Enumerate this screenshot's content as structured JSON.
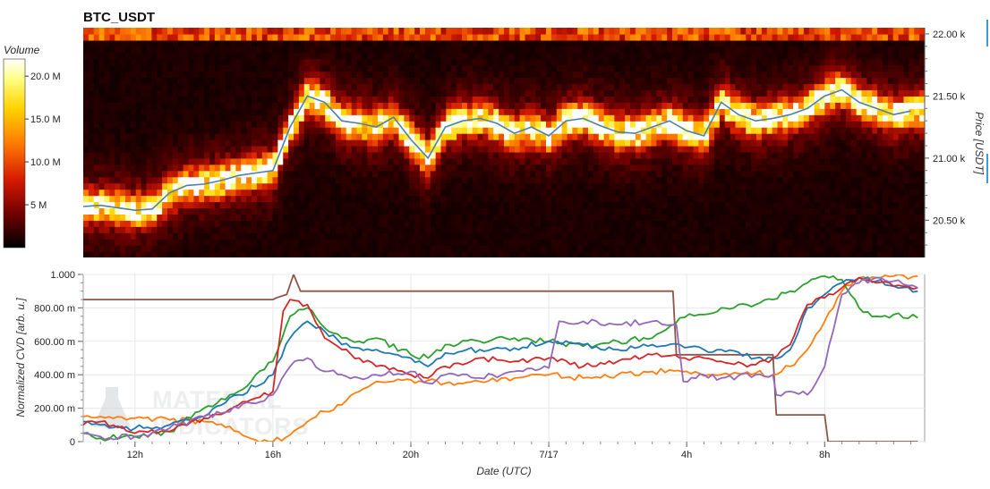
{
  "top_chart": {
    "title": "BTC_USDT",
    "colorbar": {
      "title": "Volume",
      "range": [
        0,
        22000000
      ],
      "ticks": [
        {
          "value": 5000000,
          "label": "5 M"
        },
        {
          "value": 10000000,
          "label": "10.0 M"
        },
        {
          "value": 15000000,
          "label": "15.0 M"
        },
        {
          "value": 20000000,
          "label": "20.0 M"
        }
      ],
      "colors": [
        "#000000",
        "#6b0000",
        "#d41a00",
        "#ff7a00",
        "#ffd400",
        "#ffff8a",
        "#ffffff"
      ]
    },
    "yaxis": {
      "label": "Price [USDT]",
      "range": [
        20200,
        22050
      ],
      "ticks": [
        {
          "value": 20500,
          "label": "20.50 k"
        },
        {
          "value": 21000,
          "label": "21.00 k"
        },
        {
          "value": 21500,
          "label": "21.50 k"
        },
        {
          "value": 22000,
          "label": "22.00 k"
        }
      ]
    },
    "price_line_color": "#4a7fb0"
  },
  "chart_data": [
    {
      "type": "heatmap",
      "x_hours": [
        10.5,
        11,
        11.5,
        12,
        12.5,
        13,
        13.5,
        14,
        14.5,
        15,
        15.5,
        16,
        16.5,
        17,
        17.5,
        18,
        18.5,
        19,
        19.5,
        20,
        20.5,
        21,
        21.5,
        22,
        22.5,
        23,
        23.5,
        24,
        24.5,
        25,
        25.5,
        26,
        26.5,
        27,
        27.5,
        28,
        28.5,
        29,
        29.5,
        30,
        30.5,
        31,
        31.5,
        32,
        32.5,
        33,
        33.5,
        34,
        34.5
      ],
      "price": [
        20610,
        20620,
        20600,
        20580,
        20590,
        20720,
        20780,
        20790,
        20820,
        20860,
        20880,
        20900,
        21250,
        21500,
        21450,
        21300,
        21280,
        21250,
        21330,
        21150,
        21000,
        21250,
        21300,
        21320,
        21280,
        21200,
        21250,
        21180,
        21300,
        21320,
        21260,
        21210,
        21200,
        21250,
        21300,
        21220,
        21180,
        21450,
        21350,
        21300,
        21320,
        21350,
        21400,
        21500,
        21550,
        21450,
        21400,
        21350,
        21380
      ],
      "price_unit": "USDT",
      "value_unit": "Volume"
    },
    {
      "type": "line",
      "xlabel": "Date (UTC)",
      "ylabel": "Normalized CVD [arb. u.]",
      "xlim": [
        10.5,
        34.9
      ],
      "ylim": [
        0,
        1
      ],
      "x_ticks": [
        {
          "value": 12,
          "label": "12h"
        },
        {
          "value": 16,
          "label": "16h"
        },
        {
          "value": 20,
          "label": "20h"
        },
        {
          "value": 24,
          "label": "7/17"
        },
        {
          "value": 28,
          "label": "4h"
        },
        {
          "value": 32,
          "label": "8h"
        }
      ],
      "y_ticks": [
        {
          "value": 0,
          "label": "0"
        },
        {
          "value": 0.2,
          "label": "200.00 m"
        },
        {
          "value": 0.4,
          "label": "400.00 m"
        },
        {
          "value": 0.6,
          "label": "600.00 m"
        },
        {
          "value": 0.8,
          "label": "800.00 m"
        },
        {
          "value": 1.0,
          "label": "1.000"
        }
      ],
      "series": [
        {
          "color": "#8c564b",
          "x": [
            10.5,
            16.0,
            16.1,
            16.4,
            16.6,
            16.8,
            17.0,
            27.6,
            27.7,
            30.5,
            30.6,
            32.0,
            32.1,
            34.7
          ],
          "values": [
            0.85,
            0.85,
            0.86,
            0.88,
            1.0,
            0.9,
            0.9,
            0.9,
            0.52,
            0.52,
            0.16,
            0.16,
            0.0,
            0.0
          ]
        },
        {
          "color": "#ff7f0e",
          "x": [
            10.5,
            11,
            12,
            13,
            14,
            15,
            15.5,
            16,
            16.5,
            17,
            17.5,
            18,
            18.5,
            19,
            20,
            21,
            22,
            23,
            24,
            25,
            26,
            27,
            28,
            29,
            30,
            30.5,
            31,
            31.5,
            32,
            32.5,
            33,
            34,
            34.7
          ],
          "values": [
            0.15,
            0.15,
            0.14,
            0.13,
            0.12,
            0.06,
            0.01,
            0.0,
            0.04,
            0.12,
            0.18,
            0.22,
            0.3,
            0.36,
            0.37,
            0.35,
            0.36,
            0.38,
            0.4,
            0.38,
            0.4,
            0.42,
            0.42,
            0.4,
            0.41,
            0.4,
            0.45,
            0.55,
            0.72,
            0.9,
            0.98,
            0.99,
            0.99
          ]
        },
        {
          "color": "#2ca02c",
          "x": [
            10.5,
            11,
            12,
            13,
            14,
            15,
            16,
            16.5,
            17,
            17.5,
            18,
            18.5,
            19,
            20,
            20.5,
            21,
            22,
            23,
            24,
            25,
            26,
            27,
            27.8,
            28.5,
            29,
            30,
            30.5,
            31,
            31.5,
            32,
            32.5,
            33,
            33.5,
            34,
            34.7
          ],
          "values": [
            0.05,
            0.02,
            0.03,
            0.06,
            0.2,
            0.3,
            0.48,
            0.75,
            0.8,
            0.68,
            0.62,
            0.6,
            0.62,
            0.52,
            0.5,
            0.58,
            0.6,
            0.62,
            0.6,
            0.57,
            0.6,
            0.62,
            0.74,
            0.76,
            0.8,
            0.82,
            0.85,
            0.9,
            0.95,
            0.99,
            0.97,
            0.8,
            0.75,
            0.76,
            0.74
          ]
        },
        {
          "color": "#1f77b4",
          "x": [
            10.5,
            11,
            12,
            13,
            14,
            15,
            16,
            16.5,
            17,
            17.5,
            18,
            18.5,
            19,
            20,
            20.5,
            21,
            22,
            23,
            24,
            25,
            26,
            27,
            27.8,
            28.5,
            29,
            30,
            30.5,
            31,
            31.5,
            32,
            32.5,
            33,
            33.5,
            34,
            34.7
          ],
          "values": [
            0.12,
            0.1,
            0.08,
            0.1,
            0.15,
            0.28,
            0.4,
            0.62,
            0.72,
            0.66,
            0.58,
            0.56,
            0.55,
            0.5,
            0.45,
            0.53,
            0.55,
            0.56,
            0.6,
            0.58,
            0.55,
            0.58,
            0.58,
            0.55,
            0.55,
            0.5,
            0.5,
            0.55,
            0.8,
            0.88,
            0.95,
            0.98,
            0.96,
            0.93,
            0.9
          ]
        },
        {
          "color": "#d62728",
          "x": [
            10.5,
            11,
            12,
            13,
            14,
            15,
            16,
            16.3,
            16.5,
            17,
            17.5,
            18,
            18.5,
            19,
            20,
            20.5,
            21,
            22,
            23,
            24,
            25,
            26,
            27,
            27.8,
            28.5,
            29,
            30,
            30.5,
            31,
            31.5,
            32,
            32.5,
            33,
            33.5,
            34,
            34.7
          ],
          "values": [
            0.1,
            0.12,
            0.05,
            0.06,
            0.14,
            0.22,
            0.3,
            0.78,
            0.85,
            0.82,
            0.62,
            0.55,
            0.5,
            0.45,
            0.4,
            0.38,
            0.45,
            0.5,
            0.48,
            0.5,
            0.45,
            0.48,
            0.52,
            0.5,
            0.5,
            0.48,
            0.46,
            0.5,
            0.58,
            0.82,
            0.86,
            0.92,
            0.98,
            0.95,
            0.93,
            0.92
          ]
        },
        {
          "color": "#9467bd",
          "x": [
            10.5,
            11,
            12,
            13,
            14,
            15,
            16,
            16.5,
            17,
            17.5,
            18,
            18.5,
            19,
            20,
            20.5,
            21,
            22,
            23,
            24,
            24.3,
            25,
            26,
            27,
            27.7,
            27.9,
            28.5,
            29,
            30,
            30.5,
            30.6,
            31,
            31.5,
            32,
            32.5,
            33,
            33.5,
            34,
            34.7
          ],
          "values": [
            0.05,
            0.03,
            0.03,
            0.08,
            0.15,
            0.2,
            0.28,
            0.45,
            0.5,
            0.42,
            0.4,
            0.38,
            0.4,
            0.42,
            0.35,
            0.4,
            0.38,
            0.42,
            0.44,
            0.72,
            0.72,
            0.7,
            0.72,
            0.7,
            0.36,
            0.4,
            0.38,
            0.4,
            0.4,
            0.28,
            0.3,
            0.28,
            0.45,
            0.88,
            0.95,
            0.98,
            0.96,
            0.92
          ]
        }
      ]
    }
  ],
  "watermark": {
    "line1": "MATERIAL",
    "line2": "INDICATORS"
  }
}
